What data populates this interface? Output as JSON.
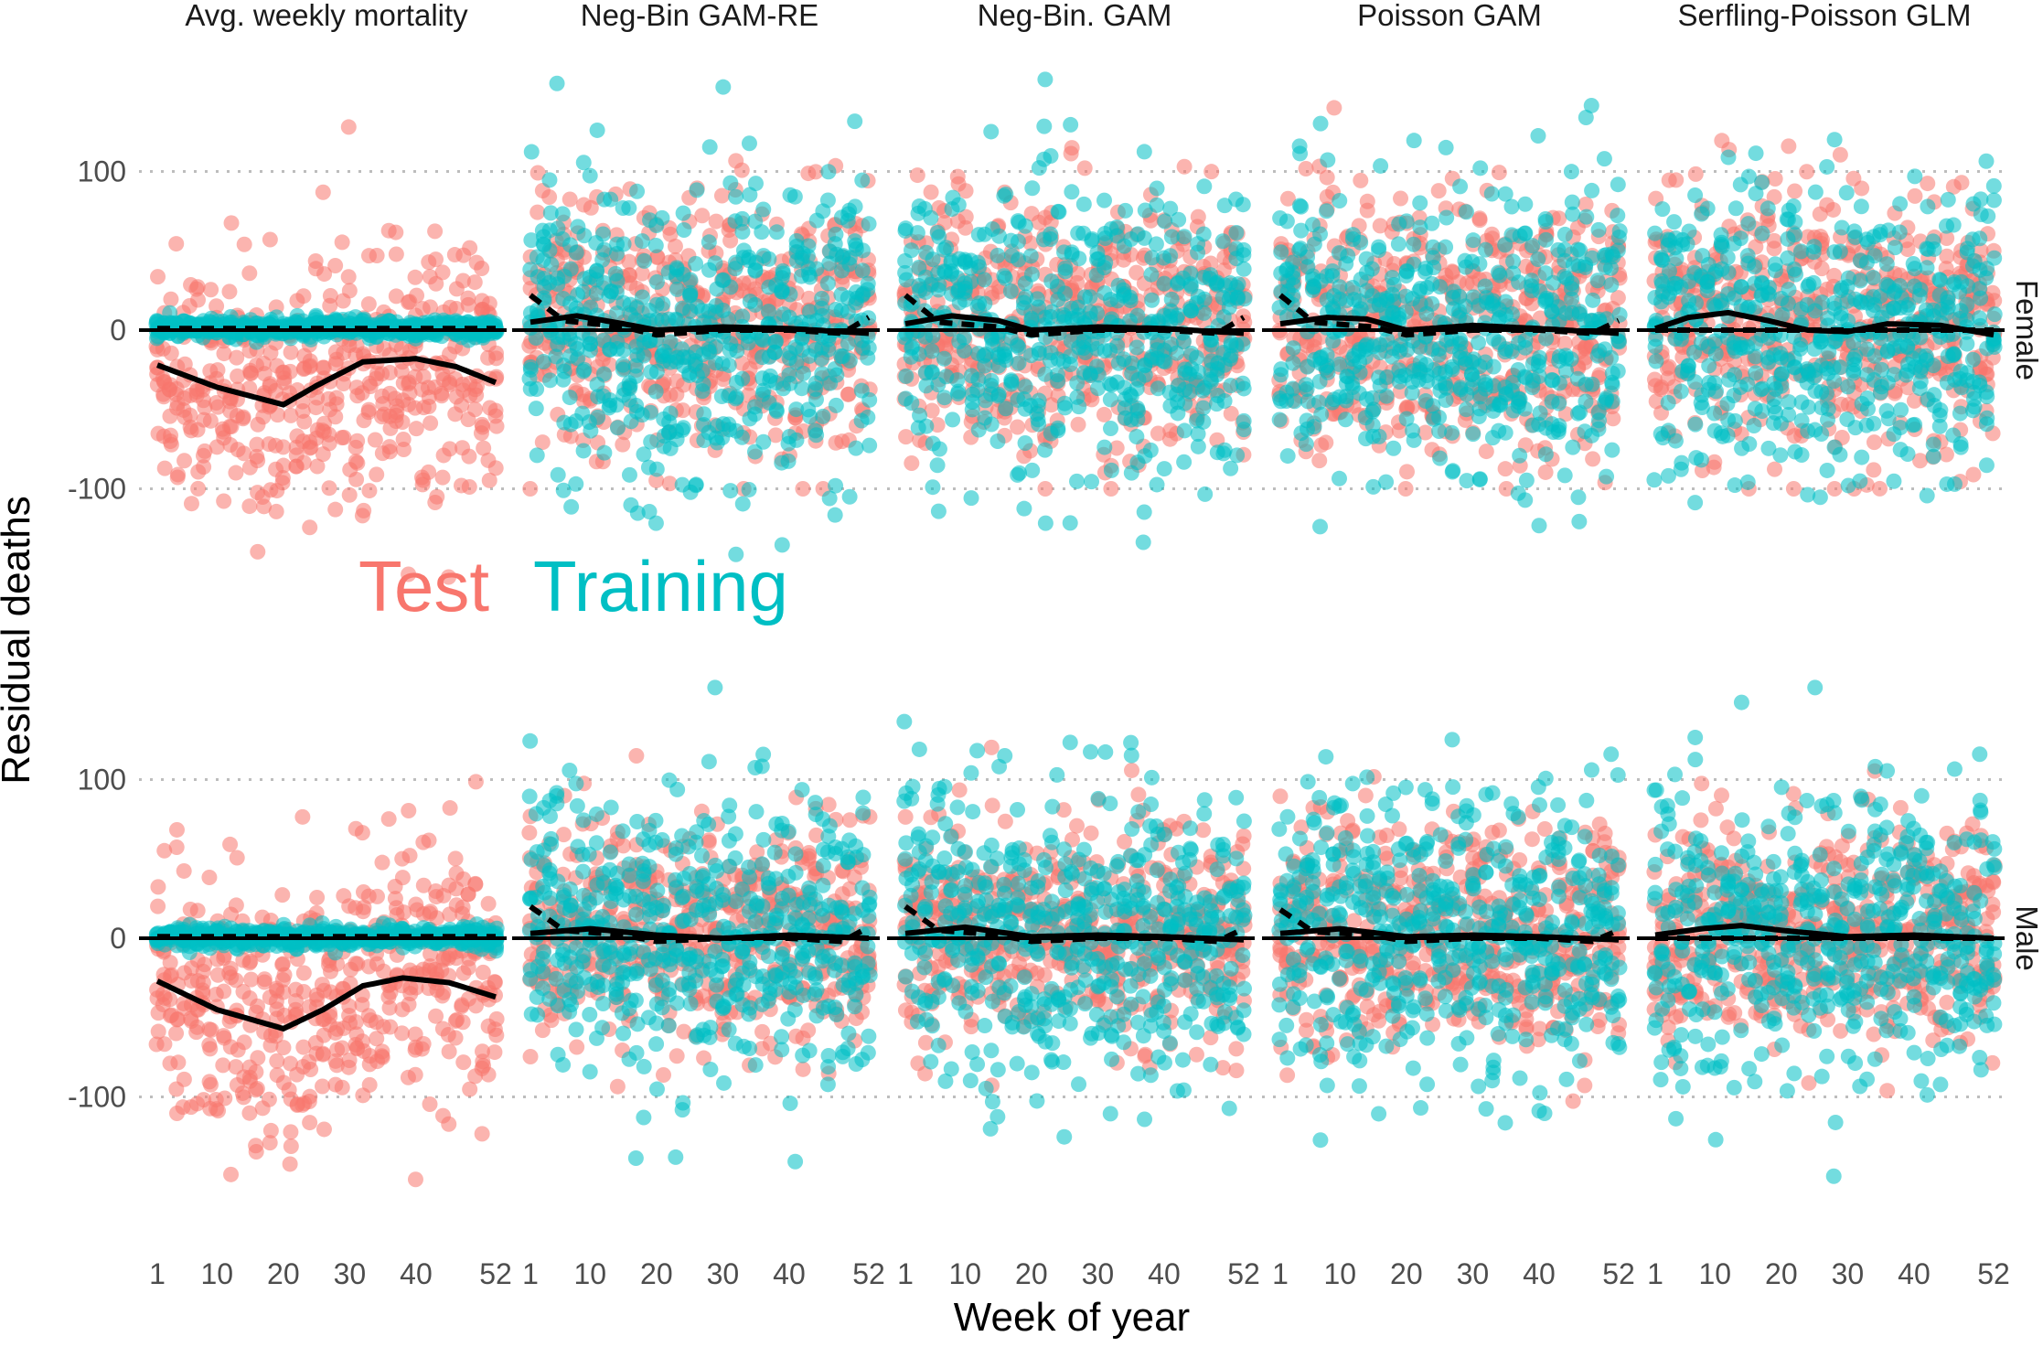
{
  "colors": {
    "test": "#F8766D",
    "training": "#00BFC4",
    "trend": "#000000",
    "grid": "#bdbdbd"
  },
  "chart_data": {
    "type": "scatter",
    "xlabel": "Week of year",
    "ylabel": "Residual deaths",
    "x_ticks": [
      "1",
      "10",
      "20",
      "30",
      "40",
      "52"
    ],
    "x_tick_values": [
      1,
      10,
      20,
      30,
      40,
      52
    ],
    "xlim": [
      1,
      52
    ],
    "y_ticks": [
      "-100",
      "0",
      "100"
    ],
    "y_tick_values": [
      -100,
      0,
      100
    ],
    "ylim": [
      -180,
      165
    ],
    "grid": "dotted horizontal at -100 and 100, solid zero line",
    "legend": {
      "position": "inside top-left row, between panels",
      "items": [
        "Test",
        "Training"
      ]
    },
    "columns": [
      "Avg. weekly mortality",
      "Neg-Bin GAM-RE",
      "Neg-Bin. GAM",
      "Poisson GAM",
      "Serfling-Poisson GLM"
    ],
    "rows": [
      "Female",
      "Male"
    ],
    "series": [
      {
        "name": "Test",
        "role": "points",
        "color": "#F8766D"
      },
      {
        "name": "Training",
        "role": "points",
        "color": "#00BFC4"
      }
    ],
    "trend_lines": {
      "Female": {
        "Avg. weekly mortality": {
          "test": [
            [
              1,
              -22
            ],
            [
              10,
              -36
            ],
            [
              20,
              -47
            ],
            [
              25,
              -35
            ],
            [
              32,
              -20
            ],
            [
              40,
              -18
            ],
            [
              46,
              -23
            ],
            [
              52,
              -33
            ]
          ],
          "training": [
            [
              1,
              1
            ],
            [
              52,
              1
            ]
          ]
        },
        "Neg-Bin GAM-RE": {
          "test": [
            [
              1,
              5
            ],
            [
              8,
              9
            ],
            [
              15,
              4
            ],
            [
              20,
              0
            ],
            [
              30,
              2
            ],
            [
              40,
              1
            ],
            [
              52,
              -2
            ]
          ],
          "training": [
            [
              1,
              22
            ],
            [
              6,
              6
            ],
            [
              15,
              2
            ],
            [
              20,
              -3
            ],
            [
              30,
              0
            ],
            [
              40,
              0
            ],
            [
              48,
              -2
            ],
            [
              52,
              8
            ]
          ]
        },
        "Neg-Bin. GAM": {
          "test": [
            [
              1,
              4
            ],
            [
              8,
              9
            ],
            [
              15,
              6
            ],
            [
              20,
              0
            ],
            [
              30,
              2
            ],
            [
              40,
              1
            ],
            [
              52,
              -2
            ]
          ],
          "training": [
            [
              1,
              22
            ],
            [
              6,
              5
            ],
            [
              15,
              2
            ],
            [
              20,
              -3
            ],
            [
              30,
              0
            ],
            [
              40,
              0
            ],
            [
              48,
              -2
            ],
            [
              52,
              8
            ]
          ]
        },
        "Poisson GAM": {
          "test": [
            [
              1,
              4
            ],
            [
              8,
              8
            ],
            [
              14,
              7
            ],
            [
              20,
              0
            ],
            [
              30,
              3
            ],
            [
              40,
              1
            ],
            [
              52,
              -2
            ]
          ],
          "training": [
            [
              1,
              22
            ],
            [
              6,
              5
            ],
            [
              15,
              2
            ],
            [
              20,
              -3
            ],
            [
              30,
              0
            ],
            [
              40,
              0
            ],
            [
              48,
              -2
            ],
            [
              52,
              6
            ]
          ]
        },
        "Serfling-Poisson GLM": {
          "test": [
            [
              1,
              1
            ],
            [
              6,
              8
            ],
            [
              12,
              11
            ],
            [
              18,
              6
            ],
            [
              24,
              0
            ],
            [
              30,
              -1
            ],
            [
              36,
              4
            ],
            [
              44,
              3
            ],
            [
              52,
              -3
            ]
          ],
          "training": [
            [
              1,
              0
            ],
            [
              52,
              0
            ]
          ]
        }
      },
      "Male": {
        "Avg. weekly mortality": {
          "test": [
            [
              1,
              -27
            ],
            [
              10,
              -45
            ],
            [
              20,
              -57
            ],
            [
              26,
              -45
            ],
            [
              32,
              -30
            ],
            [
              38,
              -25
            ],
            [
              45,
              -28
            ],
            [
              52,
              -37
            ]
          ],
          "training": [
            [
              1,
              1
            ],
            [
              52,
              1
            ]
          ]
        },
        "Neg-Bin GAM-RE": {
          "test": [
            [
              1,
              3
            ],
            [
              10,
              6
            ],
            [
              20,
              2
            ],
            [
              30,
              0
            ],
            [
              40,
              2
            ],
            [
              52,
              0
            ]
          ],
          "training": [
            [
              1,
              20
            ],
            [
              6,
              5
            ],
            [
              15,
              2
            ],
            [
              20,
              -2
            ],
            [
              30,
              0
            ],
            [
              40,
              0
            ],
            [
              48,
              -2
            ],
            [
              52,
              7
            ]
          ]
        },
        "Neg-Bin. GAM": {
          "test": [
            [
              1,
              3
            ],
            [
              10,
              7
            ],
            [
              20,
              1
            ],
            [
              30,
              2
            ],
            [
              40,
              1
            ],
            [
              52,
              -1
            ]
          ],
          "training": [
            [
              1,
              20
            ],
            [
              6,
              5
            ],
            [
              15,
              2
            ],
            [
              20,
              -2
            ],
            [
              30,
              0
            ],
            [
              40,
              0
            ],
            [
              48,
              -2
            ],
            [
              52,
              6
            ]
          ]
        },
        "Poisson GAM": {
          "test": [
            [
              1,
              3
            ],
            [
              10,
              6
            ],
            [
              20,
              1
            ],
            [
              30,
              2
            ],
            [
              40,
              1
            ],
            [
              52,
              -1
            ]
          ],
          "training": [
            [
              1,
              18
            ],
            [
              6,
              4
            ],
            [
              15,
              2
            ],
            [
              20,
              -2
            ],
            [
              30,
              0
            ],
            [
              40,
              0
            ],
            [
              48,
              -2
            ],
            [
              52,
              5
            ]
          ]
        },
        "Serfling-Poisson GLM": {
          "test": [
            [
              1,
              2
            ],
            [
              8,
              6
            ],
            [
              14,
              8
            ],
            [
              20,
              5
            ],
            [
              30,
              1
            ],
            [
              40,
              2
            ],
            [
              52,
              0
            ]
          ],
          "training": [
            [
              1,
              0
            ],
            [
              52,
              0
            ]
          ]
        }
      }
    },
    "point_spread": {
      "Female": {
        "Avg. weekly mortality": {
          "test_sd": 40,
          "test_min": -175,
          "test_max": 128,
          "training_sd": 3
        },
        "Neg-Bin GAM-RE": {
          "test_sd": 40,
          "test_min": -100,
          "test_max": 125,
          "training_sd": 45
        },
        "Neg-Bin. GAM": {
          "test_sd": 40,
          "test_min": -100,
          "test_max": 158,
          "training_sd": 45
        },
        "Poisson GAM": {
          "test_sd": 40,
          "test_min": -100,
          "test_max": 160,
          "training_sd": 45
        },
        "Serfling-Poisson GLM": {
          "test_sd": 40,
          "test_min": -100,
          "test_max": 155,
          "training_sd": 45
        }
      },
      "Male": {
        "Avg. weekly mortality": {
          "test_sd": 42,
          "test_min": -175,
          "test_max": 108,
          "training_sd": 3
        },
        "Neg-Bin GAM-RE": {
          "test_sd": 35,
          "test_min": -110,
          "test_max": 115,
          "training_sd": 45
        },
        "Neg-Bin. GAM": {
          "test_sd": 35,
          "test_min": -110,
          "test_max": 130,
          "training_sd": 45
        },
        "Poisson GAM": {
          "test_sd": 35,
          "test_min": -110,
          "test_max": 120,
          "training_sd": 45
        },
        "Serfling-Poisson GLM": {
          "test_sd": 35,
          "test_min": -110,
          "test_max": 120,
          "training_sd": 45
        }
      }
    }
  }
}
